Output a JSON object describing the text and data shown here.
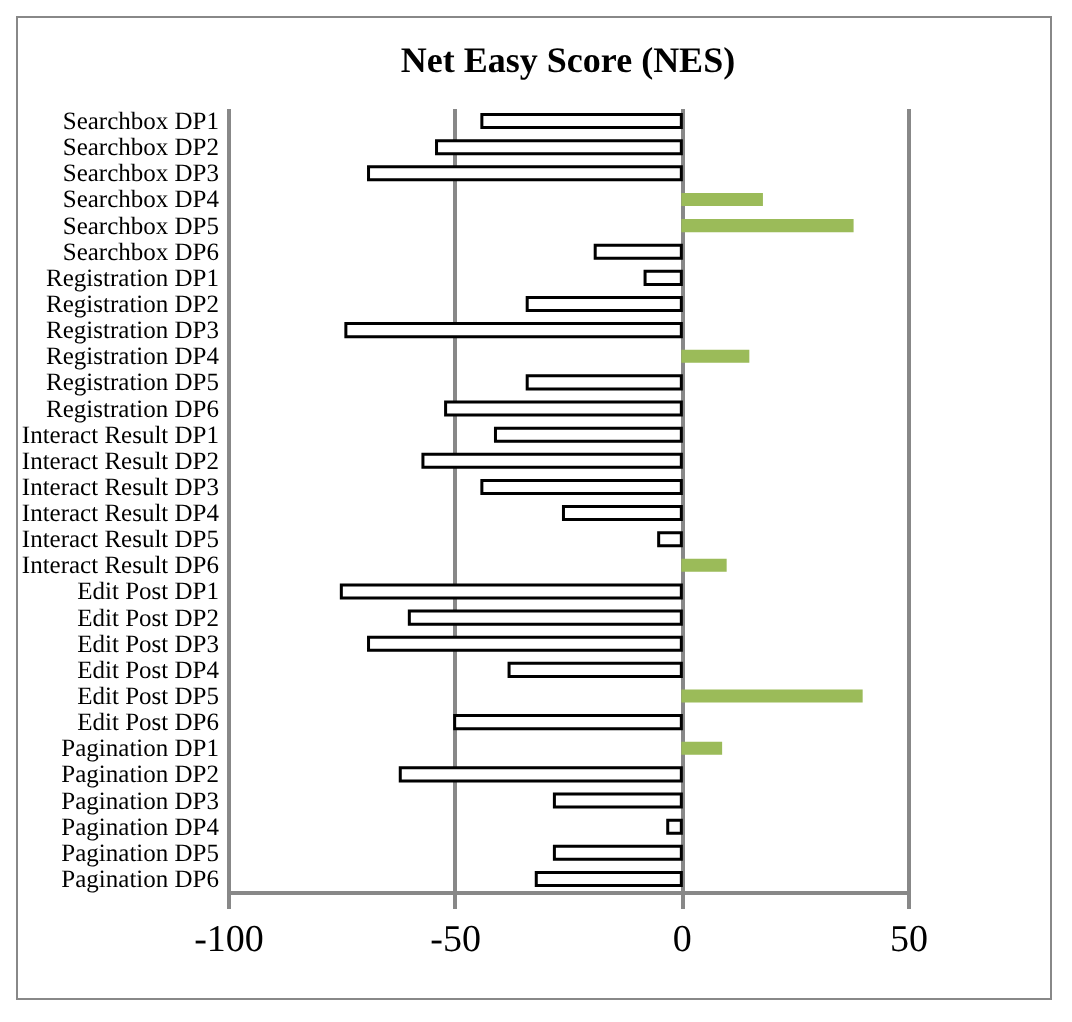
{
  "chart_data": {
    "type": "bar",
    "orientation": "horizontal",
    "title": "Net Easy Score (NES)",
    "categories": [
      "Searchbox DP1",
      "Searchbox DP2",
      "Searchbox DP3",
      "Searchbox DP4",
      "Searchbox DP5",
      "Searchbox DP6",
      "Registration DP1",
      "Registration DP2",
      "Registration DP3",
      "Registration DP4",
      "Registration DP5",
      "Registration DP6",
      "Interact Result DP1",
      "Interact Result DP2",
      "Interact Result DP3",
      "Interact Result DP4",
      "Interact Result DP5",
      "Interact Result DP6",
      "Edit Post DP1",
      "Edit Post DP2",
      "Edit Post DP3",
      "Edit Post DP4",
      "Edit Post DP5",
      "Edit Post DP6",
      "Pagination DP1",
      "Pagination DP2",
      "Pagination DP3",
      "Pagination DP4",
      "Pagination DP5",
      "Pagination DP6"
    ],
    "values": [
      -44,
      -54,
      -69,
      18,
      38,
      -19,
      -8,
      -34,
      -74,
      15,
      -34,
      -52,
      -41,
      -57,
      -44,
      -26,
      -5,
      10,
      -75,
      -60,
      -69,
      -38,
      40,
      -50,
      9,
      -62,
      -28,
      -3,
      -28,
      -32
    ],
    "colors": [
      "#ffffff",
      "#ffffff",
      "#ffffff",
      "#9bbb59",
      "#9bbb59",
      "#ffffff",
      "#ffffff",
      "#ffffff",
      "#ffffff",
      "#9bbb59",
      "#ffffff",
      "#ffffff",
      "#ffffff",
      "#ffffff",
      "#ffffff",
      "#ffffff",
      "#ffffff",
      "#9bbb59",
      "#ffffff",
      "#ffffff",
      "#ffffff",
      "#ffffff",
      "#9bbb59",
      "#ffffff",
      "#9bbb59",
      "#ffffff",
      "#ffffff",
      "#ffffff",
      "#ffffff",
      "#ffffff"
    ],
    "xlim": [
      -100,
      50
    ],
    "xticks": [
      -100,
      -50,
      0,
      50
    ],
    "grid": "x"
  }
}
